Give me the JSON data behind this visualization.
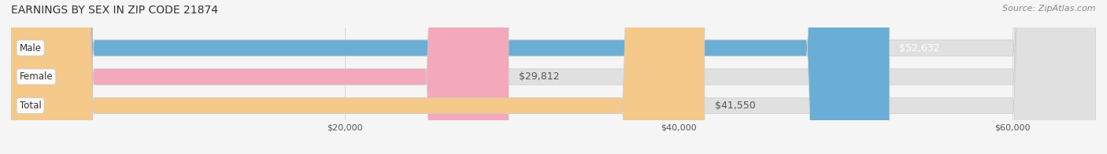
{
  "title": "EARNINGS BY SEX IN ZIP CODE 21874",
  "source": "Source: ZipAtlas.com",
  "categories": [
    "Male",
    "Female",
    "Total"
  ],
  "values": [
    52632,
    29812,
    41550
  ],
  "labels": [
    "$52,632",
    "$29,812",
    "$41,550"
  ],
  "bar_colors": [
    "#6aaed6",
    "#f4a8bc",
    "#f5c98a"
  ],
  "bar_edge_colors": [
    "#aad4ee",
    "#f9cdd8",
    "#fae0b8"
  ],
  "label_colors": [
    "#ffffff",
    "#555555",
    "#555555"
  ],
  "xmin": 0,
  "xmax": 65000,
  "xticks": [
    20000,
    40000,
    60000
  ],
  "xticklabels": [
    "$20,000",
    "$40,000",
    "$60,000"
  ],
  "background_color": "#f5f5f5",
  "bar_background_color": "#e8e8e8",
  "title_fontsize": 10,
  "source_fontsize": 8,
  "label_fontsize": 9,
  "tick_fontsize": 8,
  "cat_fontsize": 8.5,
  "bar_height": 0.55
}
